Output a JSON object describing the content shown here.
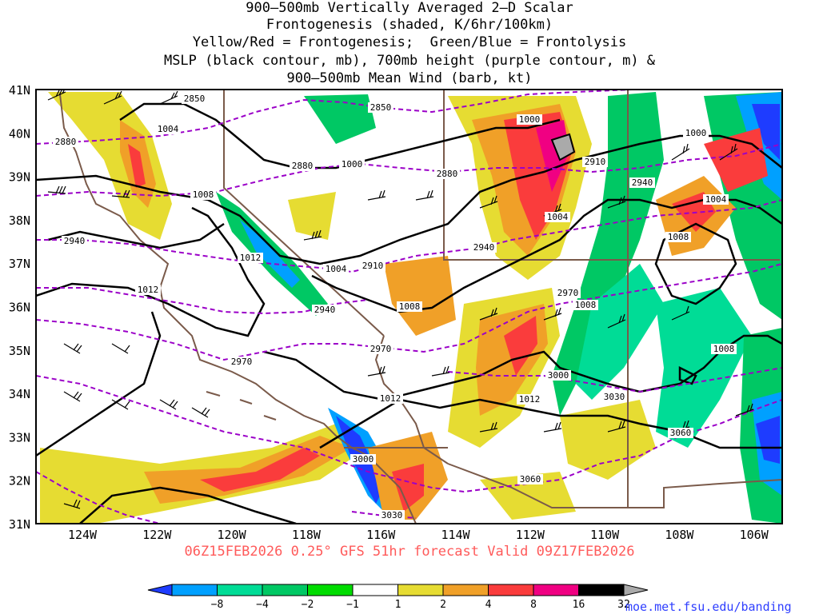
{
  "title_lines": [
    "900–500mb Vertically Averaged 2–D Scalar",
    "Frontogenesis (shaded, K/6hr/100km)",
    "Yellow/Red = Frontogenesis;  Green/Blue = Frontolysis",
    "MSLP (black contour, mb), 700mb height (purple contour, m) &",
    "900–500mb Mean Wind (barb, kt)"
  ],
  "subtitle": "06Z15FEB2026 0.25° GFS 51hr forecast Valid 09Z17FEB2026",
  "credit": "moe.met.fsu.edu/banding",
  "map": {
    "lat_labels": [
      "41N",
      "40N",
      "39N",
      "38N",
      "37N",
      "36N",
      "35N",
      "34N",
      "33N",
      "32N",
      "31N"
    ],
    "lon_labels": [
      "124W",
      "122W",
      "120W",
      "118W",
      "116W",
      "114W",
      "112W",
      "110W",
      "108W",
      "106W"
    ],
    "mslp_labels": [
      "1004",
      "1000",
      "1000",
      "1000",
      "1004",
      "1008",
      "1008",
      "1004",
      "1012",
      "1004",
      "1012",
      "1008",
      "1008",
      "1012",
      "1008",
      "1012"
    ],
    "height_labels": [
      "2850",
      "2850",
      "2880",
      "2880",
      "2880",
      "2910",
      "2940",
      "2910",
      "2940",
      "2940",
      "2940",
      "2970",
      "2970",
      "2970",
      "3000",
      "3000",
      "3030",
      "3060",
      "3060",
      "3030"
    ]
  },
  "colorbar": {
    "labels": [
      "−8",
      "−4",
      "−2",
      "−1",
      "1",
      "2",
      "4",
      "8",
      "16",
      "32"
    ],
    "colors": [
      "#1e3cff",
      "#00a0ff",
      "#00dc96",
      "#00c864",
      "#00dc00",
      "#ffffff",
      "#e6dc32",
      "#f0a028",
      "#fa3c3c",
      "#f00082",
      "#000000",
      "#aaaaaa"
    ]
  },
  "colors": {
    "coast": "#7a5a4a",
    "mslp": "#000000",
    "height": "#9b00c8"
  }
}
